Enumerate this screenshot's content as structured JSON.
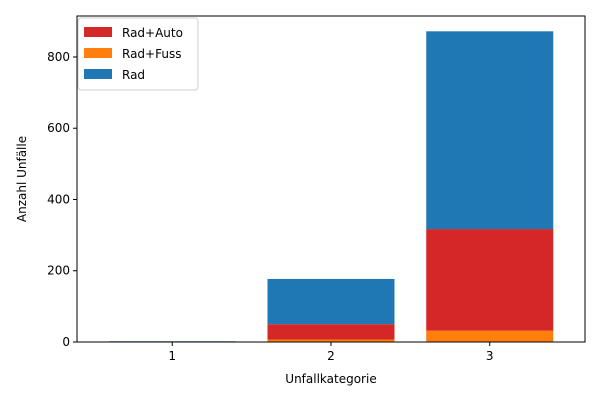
{
  "chart_data": {
    "type": "bar",
    "stacked": true,
    "categories": [
      "1",
      "2",
      "3"
    ],
    "series": [
      {
        "name": "Rad+Fuss",
        "color": "#ff7f0e",
        "values": [
          0,
          7,
          32
        ]
      },
      {
        "name": "Rad+Auto",
        "color": "#d62728",
        "values": [
          1,
          43,
          285
        ]
      },
      {
        "name": "Rad",
        "color": "#1f77b4",
        "values": [
          1,
          127,
          555
        ]
      }
    ],
    "legend_order": [
      "Rad+Auto",
      "Rad+Fuss",
      "Rad"
    ],
    "legend_placement": "top-left",
    "xlabel": "Unfallkategorie",
    "ylabel": "Anzahl Unfälle",
    "ylim": [
      0,
      915
    ],
    "yticks": [
      0,
      200,
      400,
      600,
      800
    ],
    "grid": false
  }
}
